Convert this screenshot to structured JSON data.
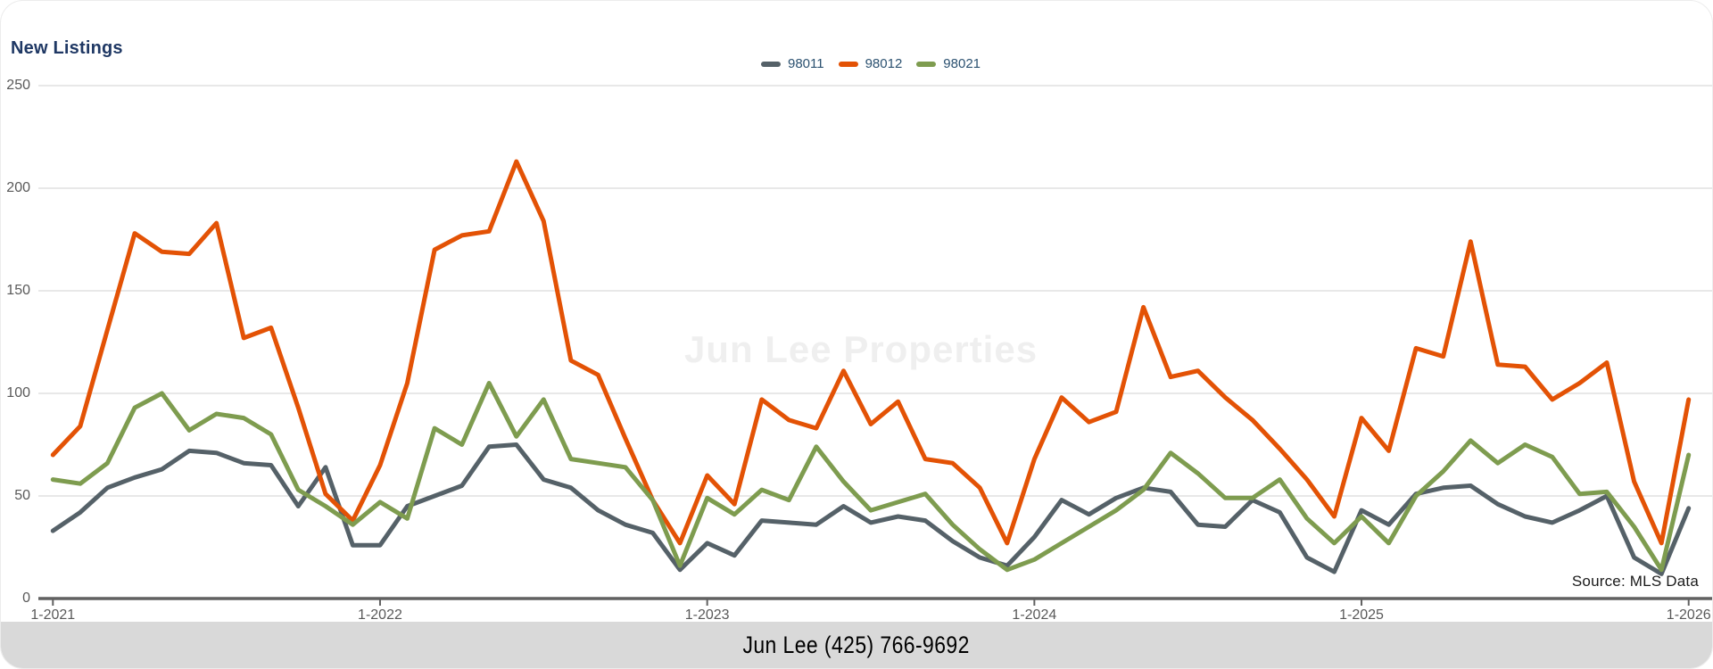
{
  "header": {
    "title": "New Listings",
    "title_color": "#1F3864"
  },
  "legend": {
    "label_color": "#2B5170",
    "items": [
      {
        "label": "98011",
        "color": "#556168"
      },
      {
        "label": "98012",
        "color": "#E35205"
      },
      {
        "label": "98021",
        "color": "#7E9C4F"
      }
    ]
  },
  "watermark": {
    "text": "Jun Lee Properties",
    "color": "#EFEFEF"
  },
  "source_note": {
    "text": "Source: MLS Data",
    "color": "#1A1A1A"
  },
  "footer": {
    "text": "Jun Lee (425) 766-9692",
    "background": "#D9D9D9",
    "text_color": "#000000"
  },
  "axes": {
    "tick_color": "#595959",
    "gridline_color": "#D9D9D9",
    "axis_color": "#616161",
    "y_ticks": [
      250,
      200,
      150,
      100,
      50,
      0
    ],
    "x_ticks": [
      "1-2021",
      "1-2022",
      "1-2023",
      "1-2024",
      "1-2025",
      "1-2026"
    ]
  },
  "chart_data": {
    "type": "line",
    "title": "New Listings",
    "x_unit": "month",
    "x_start": "1-2021",
    "x_end": "1-2026",
    "points_per_series": 61,
    "months_between_x_ticks": 12,
    "ylim": [
      0,
      250
    ],
    "grid": "horizontal",
    "legend_position": "top-center",
    "line_width": 5,
    "series": [
      {
        "name": "98011",
        "color": "#556168",
        "values": [
          33,
          42,
          54,
          59,
          63,
          72,
          71,
          66,
          65,
          45,
          64,
          26,
          26,
          45,
          50,
          55,
          74,
          75,
          58,
          54,
          43,
          36,
          32,
          14,
          27,
          21,
          38,
          37,
          36,
          45,
          37,
          40,
          38,
          28,
          20,
          16,
          30,
          48,
          41,
          49,
          54,
          52,
          36,
          35,
          48,
          42,
          20,
          13,
          43,
          36,
          51,
          54,
          55,
          46,
          40,
          37,
          43,
          50,
          20,
          12,
          44
        ]
      },
      {
        "name": "98012",
        "color": "#E35205",
        "values": [
          70,
          84,
          131,
          178,
          169,
          168,
          183,
          127,
          132,
          93,
          51,
          38,
          65,
          105,
          170,
          177,
          179,
          213,
          184,
          116,
          109,
          78,
          48,
          27,
          60,
          46,
          97,
          87,
          83,
          111,
          85,
          96,
          68,
          66,
          54,
          27,
          68,
          98,
          86,
          91,
          142,
          108,
          111,
          98,
          87,
          73,
          58,
          40,
          88,
          72,
          122,
          118,
          174,
          114,
          113,
          97,
          105,
          115,
          57,
          27,
          97
        ]
      },
      {
        "name": "98021",
        "color": "#7E9C4F",
        "values": [
          58,
          56,
          66,
          93,
          100,
          82,
          90,
          88,
          80,
          53,
          45,
          36,
          47,
          39,
          83,
          75,
          105,
          79,
          97,
          68,
          66,
          64,
          48,
          16,
          49,
          41,
          53,
          48,
          74,
          57,
          43,
          47,
          51,
          36,
          24,
          14,
          19,
          27,
          35,
          43,
          53,
          71,
          61,
          49,
          49,
          58,
          39,
          27,
          40,
          27,
          50,
          62,
          77,
          66,
          75,
          69,
          51,
          52,
          35,
          14,
          70
        ]
      }
    ]
  }
}
